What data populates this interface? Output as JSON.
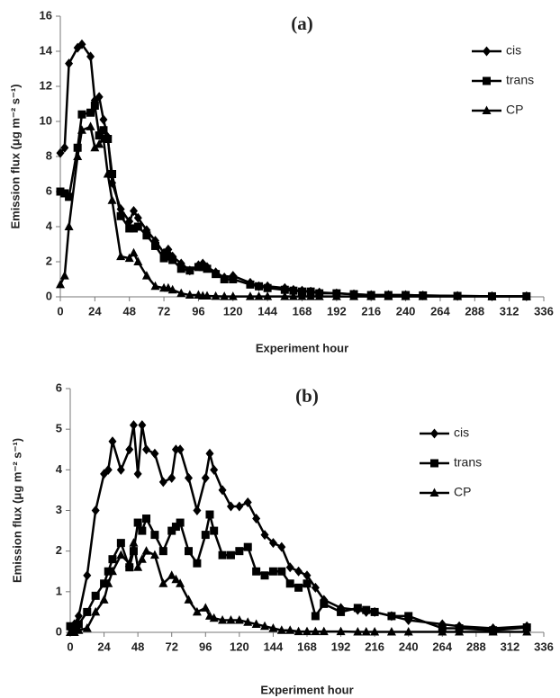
{
  "chart_data": [
    {
      "type": "line",
      "title": "(a)",
      "x_label": "Experiment hour",
      "y_label": "Emission flux (μg m⁻² s⁻¹)",
      "x": [
        0,
        3,
        6,
        12,
        15,
        21,
        24,
        27,
        30,
        33,
        36,
        42,
        48,
        51,
        54,
        60,
        66,
        72,
        75,
        78,
        84,
        90,
        96,
        99,
        102,
        108,
        114,
        120,
        132,
        138,
        144,
        156,
        162,
        168,
        174,
        180,
        192,
        204,
        216,
        228,
        240,
        252,
        276,
        300,
        324
      ],
      "series": [
        {
          "name": "cis",
          "color": "#000000",
          "marker": "diamond",
          "values": [
            8.2,
            8.5,
            13.3,
            14.2,
            14.4,
            13.7,
            11.2,
            11.4,
            10.1,
            9.1,
            6.5,
            5.0,
            4.3,
            4.9,
            4.5,
            3.8,
            3.2,
            2.5,
            2.7,
            2.3,
            1.9,
            1.5,
            1.8,
            1.9,
            1.7,
            1.4,
            1.1,
            1.2,
            0.8,
            0.6,
            0.6,
            0.5,
            0.4,
            0.35,
            0.3,
            0.25,
            0.2,
            0.15,
            0.1,
            0.1,
            0.1,
            0.08,
            0.05,
            0.03,
            0.03
          ]
        },
        {
          "name": "trans",
          "color": "#000000",
          "marker": "square",
          "values": [
            6.0,
            5.9,
            5.7,
            8.5,
            10.4,
            10.5,
            10.9,
            9.2,
            9.5,
            9.0,
            7.0,
            4.6,
            3.9,
            3.9,
            4.0,
            3.5,
            2.9,
            2.2,
            2.3,
            2.1,
            1.6,
            1.5,
            1.7,
            1.7,
            1.6,
            1.3,
            1.0,
            1.0,
            0.7,
            0.6,
            0.5,
            0.4,
            0.35,
            0.3,
            0.3,
            0.2,
            0.2,
            0.15,
            0.1,
            0.1,
            0.1,
            0.08,
            0.05,
            0.03,
            0.03
          ]
        },
        {
          "name": "CP",
          "color": "#000000",
          "marker": "triangle",
          "values": [
            0.7,
            1.2,
            4.0,
            8.0,
            9.5,
            9.7,
            8.5,
            8.7,
            9.0,
            7.0,
            5.5,
            2.3,
            2.2,
            2.5,
            2.0,
            1.2,
            0.6,
            0.5,
            0.5,
            0.4,
            0.2,
            0.1,
            0.1,
            0.05,
            0.05,
            0.03,
            0.02,
            0.02,
            0.02,
            0.02,
            0.02,
            0.02,
            0.02,
            0.02,
            0.02,
            0.02,
            0.02,
            0.02,
            0.02,
            0.02,
            0.02,
            0.02,
            0.02,
            0.02,
            0.02
          ]
        }
      ],
      "xlim": [
        0,
        336
      ],
      "xticks": [
        0,
        24,
        48,
        72,
        96,
        120,
        144,
        168,
        192,
        216,
        240,
        264,
        288,
        312,
        336
      ],
      "ylim": [
        0,
        16
      ],
      "yticks": [
        0,
        2,
        4,
        6,
        8,
        10,
        12,
        14,
        16
      ],
      "legend": "top-right"
    },
    {
      "type": "line",
      "title": "(b)",
      "x_label": "Experiment hour",
      "y_label": "Emission flux (μg m⁻² s⁻¹)",
      "x": [
        0,
        3,
        6,
        12,
        18,
        24,
        27,
        30,
        36,
        42,
        45,
        48,
        51,
        54,
        60,
        66,
        72,
        75,
        78,
        84,
        90,
        96,
        99,
        102,
        108,
        114,
        120,
        126,
        132,
        138,
        144,
        150,
        156,
        162,
        168,
        174,
        180,
        192,
        204,
        210,
        216,
        228,
        240,
        264,
        276,
        300,
        324
      ],
      "series": [
        {
          "name": "cis",
          "color": "#000000",
          "marker": "diamond",
          "values": [
            0.1,
            0.2,
            0.4,
            1.4,
            3.0,
            3.9,
            4.0,
            4.7,
            4.0,
            4.5,
            5.1,
            3.9,
            5.1,
            4.5,
            4.4,
            3.7,
            3.8,
            4.5,
            4.5,
            3.8,
            3.0,
            3.8,
            4.4,
            4.0,
            3.5,
            3.1,
            3.1,
            3.2,
            2.8,
            2.4,
            2.2,
            2.1,
            1.6,
            1.5,
            1.4,
            1.1,
            0.8,
            0.6,
            0.55,
            0.5,
            0.5,
            0.4,
            0.3,
            0.2,
            0.15,
            0.1,
            0.15
          ]
        },
        {
          "name": "trans",
          "color": "#000000",
          "marker": "square",
          "values": [
            0.15,
            0.1,
            0.2,
            0.5,
            0.9,
            1.2,
            1.5,
            1.8,
            2.2,
            1.6,
            2.0,
            2.7,
            2.5,
            2.8,
            2.4,
            2.0,
            2.5,
            2.6,
            2.7,
            2.0,
            1.7,
            2.4,
            2.9,
            2.5,
            1.9,
            1.9,
            2.0,
            2.1,
            1.5,
            1.4,
            1.5,
            1.5,
            1.2,
            1.1,
            1.2,
            0.4,
            0.7,
            0.5,
            0.6,
            0.55,
            0.5,
            0.4,
            0.4,
            0.1,
            0.1,
            0.05,
            0.12
          ]
        },
        {
          "name": "CP",
          "color": "#000000",
          "marker": "triangle",
          "values": [
            0.0,
            0.0,
            0.05,
            0.1,
            0.5,
            0.8,
            1.2,
            1.5,
            1.9,
            1.7,
            2.2,
            1.6,
            1.8,
            2.0,
            1.9,
            1.2,
            1.4,
            1.3,
            1.2,
            0.8,
            0.5,
            0.6,
            0.4,
            0.35,
            0.3,
            0.3,
            0.3,
            0.25,
            0.2,
            0.15,
            0.1,
            0.05,
            0.05,
            0.02,
            0.02,
            0.02,
            0.02,
            0.02,
            0.01,
            0.01,
            0.01,
            0.01,
            0.01,
            0.01,
            0.01,
            0.01,
            0.01
          ]
        }
      ],
      "xlim": [
        0,
        336
      ],
      "xticks": [
        0,
        24,
        48,
        72,
        96,
        120,
        144,
        168,
        192,
        216,
        240,
        264,
        288,
        312,
        336
      ],
      "ylim": [
        0,
        6
      ],
      "yticks": [
        0,
        1,
        2,
        3,
        4,
        5,
        6
      ],
      "legend": "top-right"
    }
  ]
}
